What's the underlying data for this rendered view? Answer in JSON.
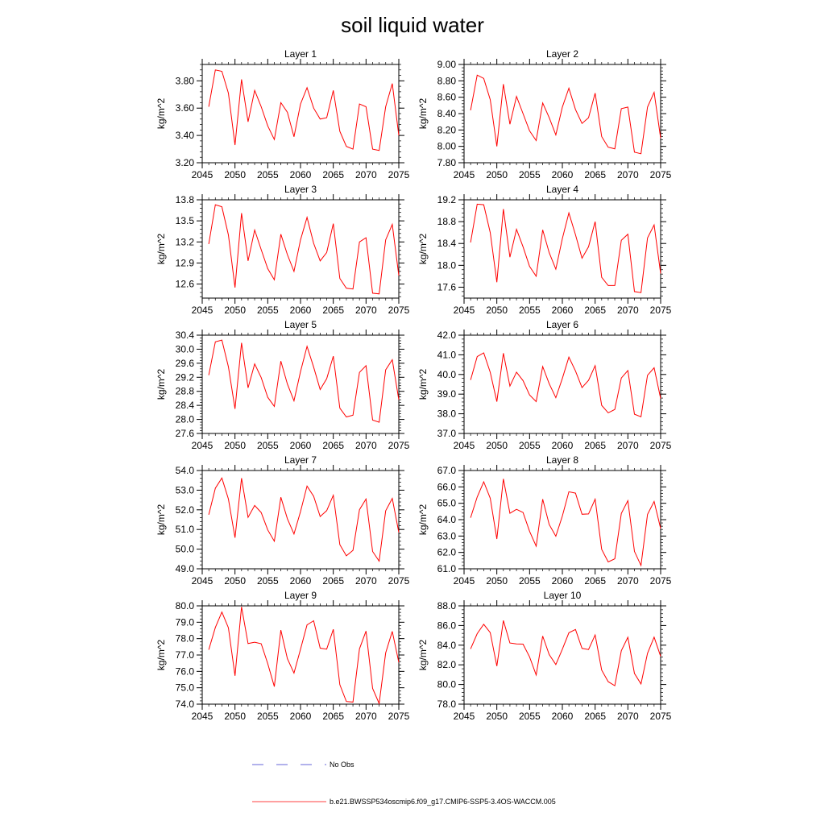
{
  "title": "soil liquid water",
  "colors": {
    "model": "#ff0000",
    "obs": "#3333cc",
    "axis": "#000000"
  },
  "legend": {
    "obs_label": "No Obs",
    "model_label": "b.e21.BWSSP534oscmip6.f09_g17.CMIP6-SSP5-3.4OS-WACCM.005"
  },
  "chart_data": [
    {
      "type": "line",
      "title": "Layer 1",
      "xlabel": "",
      "ylabel": "kg/m^2",
      "xlim": [
        2045,
        2075
      ],
      "ylim": [
        3.2,
        3.92
      ],
      "xticks": [
        2045,
        2050,
        2055,
        2060,
        2065,
        2070,
        2075
      ],
      "yticks": [
        "3.20",
        "3.40",
        "3.60",
        "3.80"
      ],
      "x": [
        2046,
        2047,
        2048,
        2049,
        2050,
        2051,
        2052,
        2053,
        2054,
        2055,
        2056,
        2057,
        2058,
        2059,
        2060,
        2061,
        2062,
        2063,
        2064,
        2065,
        2066,
        2067,
        2068,
        2069,
        2070,
        2071,
        2072,
        2073,
        2074,
        2075
      ],
      "series": [
        {
          "values": [
            3.61,
            3.88,
            3.87,
            3.71,
            3.33,
            3.81,
            3.5,
            3.73,
            3.61,
            3.47,
            3.37,
            3.64,
            3.57,
            3.39,
            3.63,
            3.75,
            3.6,
            3.52,
            3.53,
            3.73,
            3.43,
            3.32,
            3.3,
            3.63,
            3.61,
            3.3,
            3.29,
            3.61,
            3.78,
            3.4
          ]
        }
      ]
    },
    {
      "type": "line",
      "title": "Layer 2",
      "xlabel": "",
      "ylabel": "kg/m^2",
      "xlim": [
        2045,
        2075
      ],
      "ylim": [
        7.8,
        9.0
      ],
      "xticks": [
        2045,
        2050,
        2055,
        2060,
        2065,
        2070,
        2075
      ],
      "yticks": [
        "7.80",
        "8.00",
        "8.20",
        "8.40",
        "8.60",
        "8.80",
        "9.00"
      ],
      "x": [
        2046,
        2047,
        2048,
        2049,
        2050,
        2051,
        2052,
        2053,
        2054,
        2055,
        2056,
        2057,
        2058,
        2059,
        2060,
        2061,
        2062,
        2063,
        2064,
        2065,
        2066,
        2067,
        2068,
        2069,
        2070,
        2071,
        2072,
        2073,
        2074,
        2075
      ],
      "series": [
        {
          "values": [
            8.44,
            8.87,
            8.83,
            8.57,
            8.0,
            8.76,
            8.27,
            8.61,
            8.4,
            8.19,
            8.07,
            8.53,
            8.35,
            8.14,
            8.48,
            8.71,
            8.45,
            8.28,
            8.35,
            8.65,
            8.12,
            7.99,
            7.97,
            8.46,
            8.48,
            7.93,
            7.91,
            8.48,
            8.66,
            8.1
          ]
        }
      ]
    },
    {
      "type": "line",
      "title": "Layer 3",
      "xlabel": "",
      "ylabel": "kg/m^2",
      "xlim": [
        2045,
        2075
      ],
      "ylim": [
        12.4,
        13.8
      ],
      "xticks": [
        2045,
        2050,
        2055,
        2060,
        2065,
        2070,
        2075
      ],
      "yticks": [
        "12.6",
        "12.9",
        "13.2",
        "13.5",
        "13.8"
      ],
      "x": [
        2046,
        2047,
        2048,
        2049,
        2050,
        2051,
        2052,
        2053,
        2054,
        2055,
        2056,
        2057,
        2058,
        2059,
        2060,
        2061,
        2062,
        2063,
        2064,
        2065,
        2066,
        2067,
        2068,
        2069,
        2070,
        2071,
        2072,
        2073,
        2074,
        2075
      ],
      "series": [
        {
          "values": [
            13.17,
            13.73,
            13.7,
            13.3,
            12.55,
            13.61,
            12.93,
            13.37,
            13.09,
            12.82,
            12.66,
            13.31,
            13.02,
            12.78,
            13.23,
            13.55,
            13.18,
            12.93,
            13.05,
            13.46,
            12.68,
            12.54,
            12.53,
            13.2,
            13.26,
            12.47,
            12.46,
            13.23,
            13.45,
            12.72
          ]
        }
      ]
    },
    {
      "type": "line",
      "title": "Layer 4",
      "xlabel": "",
      "ylabel": "kg/m^2",
      "xlim": [
        2045,
        2075
      ],
      "ylim": [
        17.4,
        19.2
      ],
      "xticks": [
        2045,
        2050,
        2055,
        2060,
        2065,
        2070,
        2075
      ],
      "yticks": [
        "17.6",
        "18.0",
        "18.4",
        "18.8",
        "19.2"
      ],
      "x": [
        2046,
        2047,
        2048,
        2049,
        2050,
        2051,
        2052,
        2053,
        2054,
        2055,
        2056,
        2057,
        2058,
        2059,
        2060,
        2061,
        2062,
        2063,
        2064,
        2065,
        2066,
        2067,
        2068,
        2069,
        2070,
        2071,
        2072,
        2073,
        2074,
        2075
      ],
      "series": [
        {
          "values": [
            18.42,
            19.12,
            19.11,
            18.6,
            17.69,
            19.03,
            18.15,
            18.66,
            18.34,
            17.98,
            17.8,
            18.65,
            18.23,
            17.93,
            18.49,
            18.96,
            18.56,
            18.13,
            18.34,
            18.8,
            17.78,
            17.63,
            17.63,
            18.46,
            18.57,
            17.52,
            17.5,
            18.5,
            18.74,
            17.85
          ]
        }
      ]
    },
    {
      "type": "line",
      "title": "Layer 5",
      "xlabel": "",
      "ylabel": "kg/m^2",
      "xlim": [
        2045,
        2075
      ],
      "ylim": [
        27.6,
        30.4
      ],
      "xticks": [
        2045,
        2050,
        2055,
        2060,
        2065,
        2070,
        2075
      ],
      "yticks": [
        "27.6",
        "28.0",
        "28.4",
        "28.8",
        "29.2",
        "29.6",
        "30.0",
        "30.4"
      ],
      "x": [
        2046,
        2047,
        2048,
        2049,
        2050,
        2051,
        2052,
        2053,
        2054,
        2055,
        2056,
        2057,
        2058,
        2059,
        2060,
        2061,
        2062,
        2063,
        2064,
        2065,
        2066,
        2067,
        2068,
        2069,
        2070,
        2071,
        2072,
        2073,
        2074,
        2075
      ],
      "series": [
        {
          "values": [
            29.26,
            30.21,
            30.26,
            29.5,
            28.3,
            30.18,
            28.9,
            29.58,
            29.19,
            28.63,
            28.37,
            29.66,
            29.01,
            28.53,
            29.36,
            30.08,
            29.49,
            28.85,
            29.16,
            29.8,
            28.32,
            28.07,
            28.12,
            29.34,
            29.53,
            27.98,
            27.92,
            29.41,
            29.7,
            28.56
          ]
        }
      ]
    },
    {
      "type": "line",
      "title": "Layer 6",
      "xlabel": "",
      "ylabel": "kg/m^2",
      "xlim": [
        2045,
        2075
      ],
      "ylim": [
        37.0,
        42.0
      ],
      "xticks": [
        2045,
        2050,
        2055,
        2060,
        2065,
        2070,
        2075
      ],
      "yticks": [
        "37.0",
        "38.0",
        "39.0",
        "40.0",
        "41.0",
        "42.0"
      ],
      "x": [
        2046,
        2047,
        2048,
        2049,
        2050,
        2051,
        2052,
        2053,
        2054,
        2055,
        2056,
        2057,
        2058,
        2059,
        2060,
        2061,
        2062,
        2063,
        2064,
        2065,
        2066,
        2067,
        2068,
        2069,
        2070,
        2071,
        2072,
        2073,
        2074,
        2075
      ],
      "series": [
        {
          "values": [
            39.72,
            40.91,
            41.1,
            40.11,
            38.62,
            41.08,
            39.41,
            40.12,
            39.69,
            38.96,
            38.62,
            40.4,
            39.53,
            38.82,
            39.8,
            40.88,
            40.18,
            39.33,
            39.7,
            40.45,
            38.43,
            38.05,
            38.22,
            39.82,
            40.2,
            37.98,
            37.85,
            39.96,
            40.34,
            38.78
          ]
        }
      ]
    },
    {
      "type": "line",
      "title": "Layer 7",
      "xlabel": "",
      "ylabel": "kg/m^2",
      "xlim": [
        2045,
        2075
      ],
      "ylim": [
        49.0,
        54.0
      ],
      "xticks": [
        2045,
        2050,
        2055,
        2060,
        2065,
        2070,
        2075
      ],
      "yticks": [
        "49.0",
        "50.0",
        "51.0",
        "52.0",
        "53.0",
        "54.0"
      ],
      "x": [
        2046,
        2047,
        2048,
        2049,
        2050,
        2051,
        2052,
        2053,
        2054,
        2055,
        2056,
        2057,
        2058,
        2059,
        2060,
        2061,
        2062,
        2063,
        2064,
        2065,
        2066,
        2067,
        2068,
        2069,
        2070,
        2071,
        2072,
        2073,
        2074,
        2075
      ],
      "series": [
        {
          "values": [
            51.75,
            53.1,
            53.62,
            52.55,
            50.58,
            53.61,
            51.62,
            52.22,
            51.86,
            50.98,
            50.4,
            52.64,
            51.55,
            50.77,
            51.91,
            53.21,
            52.69,
            51.66,
            51.96,
            52.74,
            50.23,
            49.66,
            49.94,
            52.01,
            52.55,
            49.88,
            49.39,
            51.95,
            52.58,
            50.85
          ]
        }
      ]
    },
    {
      "type": "line",
      "title": "Layer 8",
      "xlabel": "",
      "ylabel": "kg/m^2",
      "xlim": [
        2045,
        2075
      ],
      "ylim": [
        61.0,
        67.0
      ],
      "xticks": [
        2045,
        2050,
        2055,
        2060,
        2065,
        2070,
        2075
      ],
      "yticks": [
        "61.0",
        "62.0",
        "63.0",
        "64.0",
        "65.0",
        "66.0",
        "67.0"
      ],
      "x": [
        2046,
        2047,
        2048,
        2049,
        2050,
        2051,
        2052,
        2053,
        2054,
        2055,
        2056,
        2057,
        2058,
        2059,
        2060,
        2061,
        2062,
        2063,
        2064,
        2065,
        2066,
        2067,
        2068,
        2069,
        2070,
        2071,
        2072,
        2073,
        2074,
        2075
      ],
      "series": [
        {
          "values": [
            64.12,
            65.38,
            66.31,
            65.31,
            62.82,
            66.49,
            64.39,
            64.63,
            64.44,
            63.29,
            62.38,
            65.25,
            63.7,
            62.99,
            64.22,
            65.7,
            65.62,
            64.33,
            64.35,
            65.25,
            62.19,
            61.42,
            61.61,
            64.38,
            65.16,
            62.06,
            61.2,
            64.32,
            65.11,
            63.46
          ]
        }
      ]
    },
    {
      "type": "line",
      "title": "Layer 9",
      "xlabel": "",
      "ylabel": "kg/m^2",
      "xlim": [
        2045,
        2075
      ],
      "ylim": [
        74.0,
        80.0
      ],
      "xticks": [
        2045,
        2050,
        2055,
        2060,
        2065,
        2070,
        2075
      ],
      "yticks": [
        "74.0",
        "75.0",
        "76.0",
        "77.0",
        "78.0",
        "79.0",
        "80.0"
      ],
      "x": [
        2046,
        2047,
        2048,
        2049,
        2050,
        2051,
        2052,
        2053,
        2054,
        2055,
        2056,
        2057,
        2058,
        2059,
        2060,
        2061,
        2062,
        2063,
        2064,
        2065,
        2066,
        2067,
        2068,
        2069,
        2070,
        2071,
        2072,
        2073,
        2074,
        2075
      ],
      "series": [
        {
          "values": [
            77.32,
            78.68,
            79.62,
            78.66,
            75.73,
            79.94,
            77.7,
            77.78,
            77.69,
            76.48,
            75.07,
            78.52,
            76.78,
            75.9,
            77.35,
            78.84,
            79.09,
            77.42,
            77.36,
            78.57,
            75.19,
            74.16,
            74.13,
            77.38,
            78.46,
            74.96,
            74.04,
            77.13,
            78.44,
            76.55
          ]
        }
      ]
    },
    {
      "type": "line",
      "title": "Layer 10",
      "xlabel": "",
      "ylabel": "kg/m^2",
      "xlim": [
        2045,
        2075
      ],
      "ylim": [
        78.0,
        88.0
      ],
      "xticks": [
        2045,
        2050,
        2055,
        2060,
        2065,
        2070,
        2075
      ],
      "yticks": [
        "78.0",
        "80.0",
        "82.0",
        "84.0",
        "86.0",
        "88.0"
      ],
      "x": [
        2046,
        2047,
        2048,
        2049,
        2050,
        2051,
        2052,
        2053,
        2054,
        2055,
        2056,
        2057,
        2058,
        2059,
        2060,
        2061,
        2062,
        2063,
        2064,
        2065,
        2066,
        2067,
        2068,
        2069,
        2070,
        2071,
        2072,
        2073,
        2074,
        2075
      ],
      "series": [
        {
          "values": [
            83.62,
            85.17,
            86.12,
            85.28,
            81.87,
            86.51,
            84.22,
            84.13,
            84.11,
            82.81,
            80.97,
            84.93,
            83.04,
            82.03,
            83.59,
            85.26,
            85.6,
            83.67,
            83.56,
            85.04,
            81.47,
            80.29,
            79.88,
            83.44,
            84.8,
            81.12,
            80.06,
            83.17,
            84.82,
            82.86
          ]
        }
      ]
    }
  ]
}
